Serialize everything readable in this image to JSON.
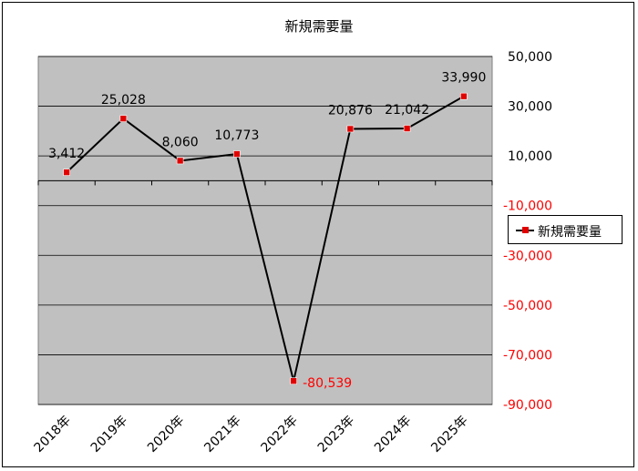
{
  "chart_data": {
    "type": "line",
    "title": "新規需要量",
    "categories": [
      "2018年",
      "2019年",
      "2020年",
      "2021年",
      "2022年",
      "2023年",
      "2024年",
      "2025年"
    ],
    "series": [
      {
        "name": "新規需要量",
        "values": [
          3412,
          25028,
          8060,
          10773,
          -80539,
          20876,
          21042,
          33990
        ],
        "data_labels": [
          "3,412",
          "25,028",
          "8,060",
          "10,773",
          "-80,539",
          "20,876",
          "21,042",
          "33,990"
        ],
        "line_color": "#000000",
        "marker_color": "#e00000"
      }
    ],
    "y_axis_position": "right",
    "ylim": [
      -90000,
      50000
    ],
    "y_ticks": [
      50000,
      30000,
      10000,
      -10000,
      -30000,
      -50000,
      -70000,
      -90000
    ],
    "y_tick_labels": [
      "50,000",
      "30,000",
      "10,000",
      "-10,000",
      "-30,000",
      "-50,000",
      "-70,000",
      "-90,000"
    ],
    "negative_label_color": "#ff0000",
    "grid": true,
    "plot_background": "#c0c0c0",
    "legend_position": "right"
  }
}
